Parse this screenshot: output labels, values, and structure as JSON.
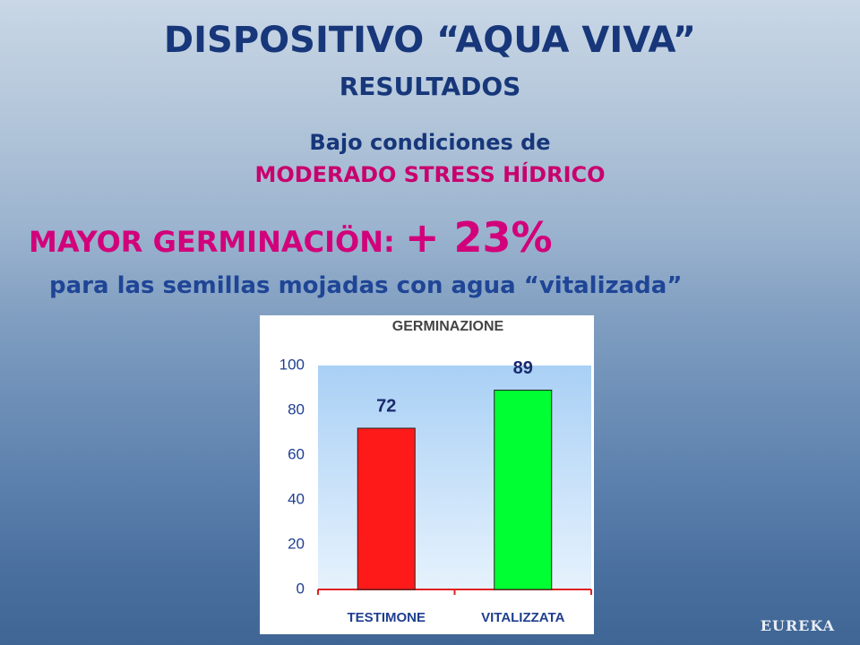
{
  "slide": {
    "title": "DISPOSITIVO “AQUA VIVA”",
    "subtitle": "RESULTADOS",
    "condition_intro": "Bajo condiciones de",
    "condition": "MODERADO STRESS HÍDRICO",
    "headline": "MAYOR GERMINACIÖN:",
    "headline_value": "+ 23%",
    "tagline": "para las semillas mojadas con agua “vitalizada”",
    "footer": "EUREKA"
  },
  "chart_data": {
    "type": "bar",
    "title": "GERMINAZIONE",
    "categories": [
      "TESTIMONE",
      "VITALIZZATA"
    ],
    "values": [
      72,
      89
    ],
    "colors": [
      "#ff1a1a",
      "#00ff33"
    ],
    "ylim": [
      0,
      100
    ],
    "yticks": [
      0,
      20,
      40,
      60,
      80,
      100
    ]
  }
}
